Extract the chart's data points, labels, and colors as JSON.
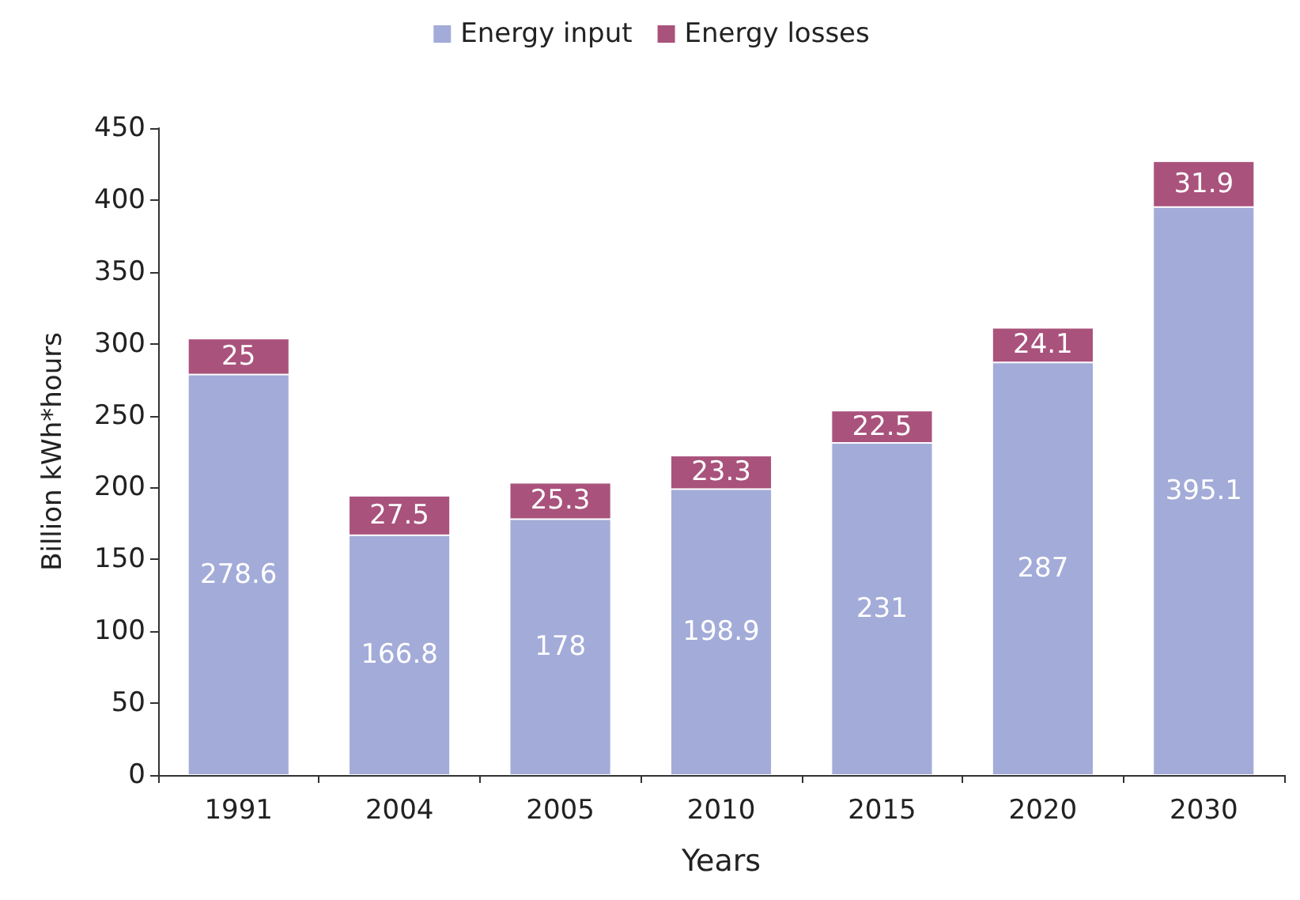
{
  "chart_data": {
    "type": "bar",
    "stacked": true,
    "xlabel": "Years",
    "ylabel": "Billion kWh*hours",
    "categories": [
      "1991",
      "2004",
      "2005",
      "2010",
      "2015",
      "2020",
      "2030"
    ],
    "series": [
      {
        "name": "Energy input",
        "color": "#a3abd8",
        "values": [
          278.6,
          166.8,
          178,
          198.9,
          231,
          287,
          395.1
        ]
      },
      {
        "name": "Energy losses",
        "color": "#a9527c",
        "values": [
          25,
          27.5,
          25.3,
          23.3,
          22.5,
          24.1,
          31.9
        ]
      }
    ],
    "ylim": [
      0,
      450
    ],
    "yticks": [
      0,
      50,
      100,
      150,
      200,
      250,
      300,
      350,
      400,
      450
    ],
    "grid": false,
    "legend": "top",
    "data_labels": true
  }
}
